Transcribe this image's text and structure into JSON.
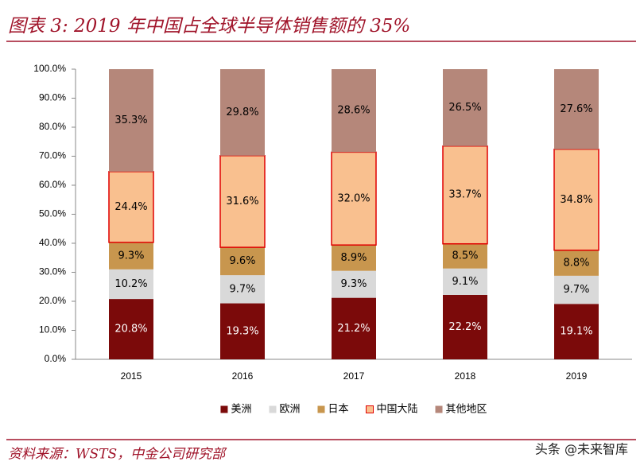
{
  "chart_data": {
    "type": "stacked_bar",
    "title": "图表 3: 2019 年中国占全球半导体销售额的 35%",
    "categories": [
      "2015",
      "2016",
      "2017",
      "2018",
      "2019"
    ],
    "series": [
      {
        "name": "美洲",
        "color": "#7b0a0a",
        "values": [
          20.8,
          19.3,
          21.2,
          22.2,
          19.1
        ],
        "value_labels": [
          "20.8%",
          "19.3%",
          "21.2%",
          "22.2%",
          "19.1%"
        ]
      },
      {
        "name": "欧洲",
        "color": "#d9d9d9",
        "values": [
          10.2,
          9.7,
          9.3,
          9.1,
          9.7
        ],
        "value_labels": [
          "10.2%",
          "9.7%",
          "9.3%",
          "9.1%",
          "9.7%"
        ]
      },
      {
        "name": "日本",
        "color": "#c8964e",
        "values": [
          9.3,
          9.6,
          8.9,
          8.5,
          8.8
        ],
        "value_labels": [
          "9.3%",
          "9.6%",
          "8.9%",
          "8.5%",
          "8.8%"
        ]
      },
      {
        "name": "中国大陆",
        "color": "#f9c08f",
        "edgecolor": "#e00000",
        "values": [
          24.4,
          31.6,
          32.0,
          33.7,
          34.8
        ],
        "value_labels": [
          "24.4%",
          "31.6%",
          "32.0%",
          "33.7%",
          "34.8%"
        ]
      },
      {
        "name": "其他地区",
        "color": "#b5877a",
        "values": [
          35.3,
          29.8,
          28.6,
          26.5,
          27.6
        ],
        "value_labels": [
          "35.3%",
          "29.8%",
          "28.6%",
          "26.5%",
          "27.6%"
        ]
      }
    ],
    "ylim": [
      0,
      100
    ],
    "yticks": [
      {
        "value": 0,
        "label": "0.0%"
      },
      {
        "value": 10,
        "label": "10.0%"
      },
      {
        "value": 20,
        "label": "20.0%"
      },
      {
        "value": 30,
        "label": "30.0%"
      },
      {
        "value": 40,
        "label": "40.0%"
      },
      {
        "value": 50,
        "label": "50.0%"
      },
      {
        "value": 60,
        "label": "60.0%"
      },
      {
        "value": 70,
        "label": "70.0%"
      },
      {
        "value": 80,
        "label": "80.0%"
      },
      {
        "value": 90,
        "label": "90.0%"
      },
      {
        "value": 100,
        "label": "100.0%"
      }
    ],
    "grid": false,
    "legend": "bottom"
  },
  "source": "资料来源：WSTS，中金公司研究部",
  "watermark": "头条 @未来智库"
}
